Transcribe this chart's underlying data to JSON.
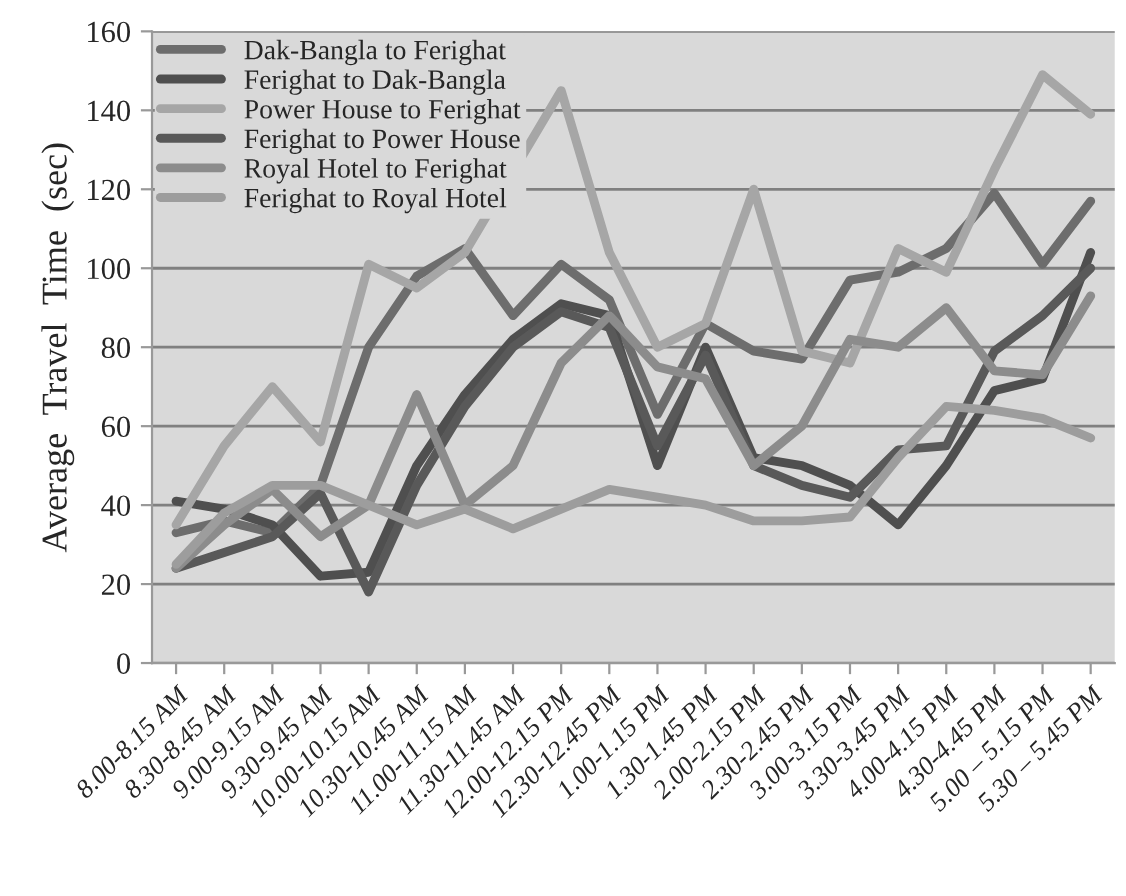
{
  "chart_data": {
    "type": "line",
    "ylabel": "Average  Travel  Time  (sec)",
    "categories": [
      "8.00-8.15 AM",
      "8.30-8.45 AM",
      "9.00-9.15 AM",
      "9.30-9.45 AM",
      "10.00-10.15 AM",
      "10.30-10.45 AM",
      "11.00-11.15 AM",
      "11.30-11.45 AM",
      "12.00-12.15 PM",
      "12.30-12.45 PM",
      "1.00-1.15 PM",
      "1.30-1.45 PM",
      "2.00-2.15 PM",
      "2.30-2.45 PM",
      "3.00-3.15 PM",
      "3.30-3.45 PM",
      "4.00-4.15 PM",
      "4.30-4.45 PM",
      "5.00 – 5.15 PM",
      "5.30 – 5.45 PM"
    ],
    "series": [
      {
        "name": "Dak-Bangla to Ferighat",
        "color": "#6d6d6d",
        "values": [
          33,
          36,
          33,
          45,
          80,
          98,
          105,
          88,
          101,
          92,
          63,
          86,
          79,
          77,
          97,
          99,
          105,
          119,
          101,
          117
        ]
      },
      {
        "name": "Ferighat to Dak-Bangla",
        "color": "#4f4f4f",
        "values": [
          41,
          39,
          35,
          22,
          23,
          50,
          68,
          82,
          91,
          88,
          50,
          80,
          52,
          50,
          45,
          35,
          50,
          69,
          72,
          104
        ]
      },
      {
        "name": "Power House to Ferighat",
        "color": "#a6a6a6",
        "values": [
          35,
          55,
          70,
          56,
          101,
          95,
          104,
          null,
          145,
          104,
          80,
          86,
          120,
          79,
          76,
          105,
          99,
          125,
          149,
          139
        ]
      },
      {
        "name": "Ferighat to Power House",
        "color": "#595959",
        "values": [
          24,
          28,
          32,
          43,
          18,
          45,
          65,
          80,
          89,
          85,
          55,
          78,
          50,
          45,
          42,
          54,
          55,
          79,
          88,
          100
        ]
      },
      {
        "name": "Royal Hotel to Ferighat",
        "color": "#8c8c8c",
        "values": [
          24,
          35,
          44,
          32,
          40,
          68,
          40,
          50,
          76,
          88,
          75,
          72,
          50,
          60,
          82,
          80,
          90,
          74,
          73,
          93
        ]
      },
      {
        "name": "Ferighat to Royal Hotel",
        "color": "#9d9d9d",
        "values": [
          25,
          38,
          45,
          45,
          40,
          35,
          39,
          34,
          39,
          44,
          42,
          40,
          36,
          36,
          37,
          52,
          65,
          64,
          62,
          57
        ]
      }
    ],
    "ylim": [
      0,
      160
    ],
    "yticks": [
      0,
      20,
      40,
      60,
      80,
      100,
      120,
      140,
      160
    ],
    "grid": "y",
    "legend": "top left",
    "marker": "none",
    "line_style": "solid"
  }
}
